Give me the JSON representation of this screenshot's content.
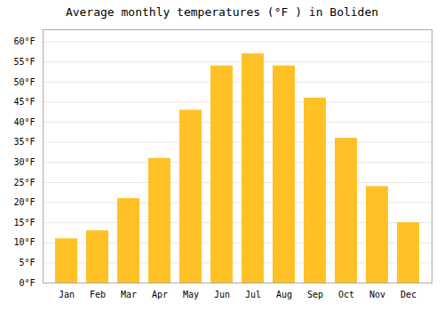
{
  "chart_data": {
    "type": "bar",
    "title": "Average monthly temperatures (°F ) in Boliden",
    "categories": [
      "Jan",
      "Feb",
      "Mar",
      "Apr",
      "May",
      "Jun",
      "Jul",
      "Aug",
      "Sep",
      "Oct",
      "Nov",
      "Dec"
    ],
    "values": [
      11,
      13,
      21,
      31,
      43,
      54,
      57,
      54,
      46,
      36,
      24,
      15
    ],
    "color": "#FFC125",
    "ylim": [
      0,
      63
    ],
    "yticks": [
      {
        "value": 0,
        "label": "0°F"
      },
      {
        "value": 5,
        "label": "5°F"
      },
      {
        "value": 10,
        "label": "10°F"
      },
      {
        "value": 15,
        "label": "15°F"
      },
      {
        "value": 20,
        "label": "20°F"
      },
      {
        "value": 25,
        "label": "25°F"
      },
      {
        "value": 30,
        "label": "30°F"
      },
      {
        "value": 35,
        "label": "35°F"
      },
      {
        "value": 40,
        "label": "40°F"
      },
      {
        "value": 45,
        "label": "45°F"
      },
      {
        "value": 50,
        "label": "50°F"
      },
      {
        "value": 55,
        "label": "55°F"
      },
      {
        "value": 60,
        "label": "60°F"
      }
    ],
    "grid": true
  }
}
